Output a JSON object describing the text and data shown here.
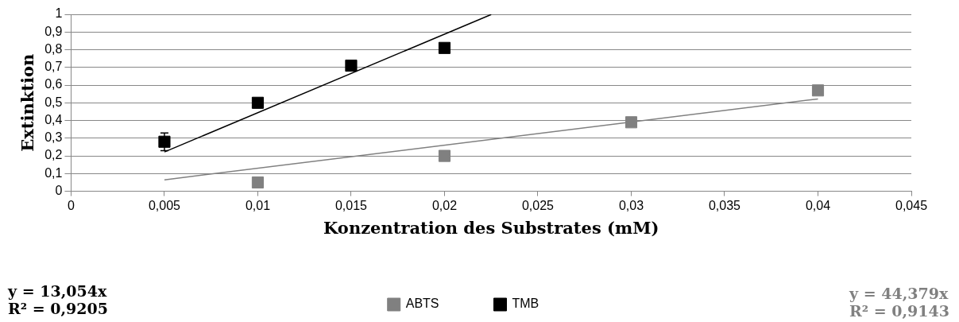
{
  "chart_data": {
    "type": "scatter",
    "xlabel": "Konzentration des Substrates (mM)",
    "ylabel": "Extinktion",
    "xlim": [
      0,
      0.045
    ],
    "xticks": [
      0,
      {
        "value": 0.005,
        "label": "0,005"
      },
      {
        "value": 0.01,
        "label": "0,01"
      },
      {
        "value": 0.015,
        "label": "0,015"
      },
      {
        "value": 0.02,
        "label": "0,02"
      },
      {
        "value": 0.025,
        "label": "0,025"
      },
      {
        "value": 0.03,
        "label": "0,03"
      },
      {
        "value": 0.035,
        "label": "0,035"
      },
      {
        "value": 0.04,
        "label": "0,04"
      },
      {
        "value": 0.045,
        "label": "0,045"
      }
    ],
    "ylim": [
      0,
      1
    ],
    "yticks": [
      0,
      {
        "value": 0.1,
        "label": "0,1"
      },
      {
        "value": 0.2,
        "label": "0,2"
      },
      {
        "value": 0.3,
        "label": "0,3"
      },
      {
        "value": 0.4,
        "label": "0,4"
      },
      {
        "value": 0.5,
        "label": "0,5"
      },
      {
        "value": 0.6,
        "label": "0,6"
      },
      {
        "value": 0.7,
        "label": "0,7"
      },
      {
        "value": 0.8,
        "label": "0,8"
      },
      {
        "value": 0.9,
        "label": "0,9"
      },
      1
    ],
    "grid": "y",
    "legend": "bottom",
    "series": [
      {
        "name": "ABTS",
        "color": "#808080",
        "marker": "square",
        "x": [
          0.01,
          0.02,
          0.03,
          0.04
        ],
        "values": [
          0.05,
          0.2,
          0.39,
          0.57
        ]
      },
      {
        "name": "TMB",
        "color": "#000000",
        "marker": "square",
        "x": [
          0.005,
          0.01,
          0.015,
          0.02
        ],
        "values": [
          0.28,
          0.5,
          0.71,
          0.81
        ],
        "errors": [
          0.05,
          null,
          null,
          null
        ]
      },
      {
        "type": "line",
        "color": "#808080",
        "x": [
          0.005,
          0.04
        ],
        "values": [
          0.065,
          0.522
        ],
        "line_style": "solid",
        "marker": "none"
      },
      {
        "type": "line",
        "color": "#000000",
        "x": [
          0.005,
          0.0225
        ],
        "values": [
          0.222,
          0.999
        ],
        "line_style": "solid",
        "marker": "none"
      }
    ],
    "annotations": [
      "y = 13,054x\nR² = 0,9205",
      "y = 44,379x\nR² = 0,9143"
    ]
  }
}
